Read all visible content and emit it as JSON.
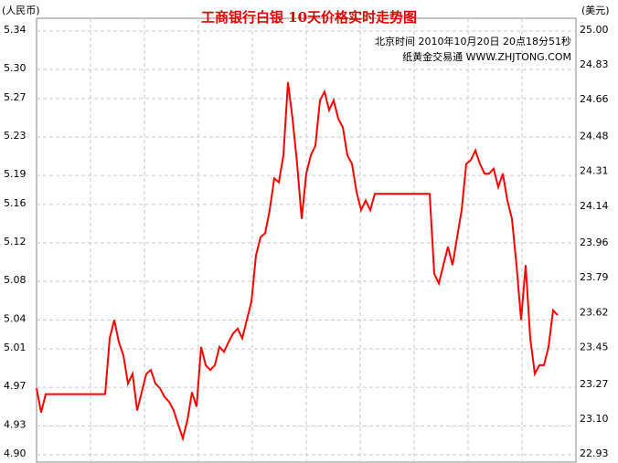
{
  "chart_data": {
    "type": "line",
    "title": "工商银行白银  10天价格实时走势图",
    "subtitle": "北京时间  2010年10月20日 20点18分51秒",
    "source": "纸黄金交易通 WWW.ZHJTONG.COM",
    "ylabel": "(人民币)",
    "y2label": "(美元)",
    "color": "#ff0000",
    "grid": true,
    "ylim": [
      4.9,
      5.34
    ],
    "yticks": [
      5.34,
      {
        "value": 5.3,
        "label": "5.30"
      },
      5.27,
      5.23,
      5.19,
      5.16,
      5.12,
      5.08,
      5.04,
      5.01,
      4.97,
      4.93,
      {
        "value": 4.9,
        "label": "4.90"
      }
    ],
    "y2lim": [
      22.93,
      25.0
    ],
    "y2ticks": [
      {
        "value": 25.0,
        "label": "25.00"
      },
      24.83,
      24.66,
      24.48,
      24.31,
      24.14,
      23.96,
      23.79,
      23.62,
      23.45,
      23.27,
      {
        "value": 23.1,
        "label": "23.10"
      },
      22.93
    ],
    "values": [
      4.969,
      4.944,
      4.963,
      4.963,
      4.963,
      4.963,
      4.963,
      4.963,
      4.963,
      4.963,
      4.963,
      4.963,
      4.963,
      4.963,
      4.963,
      4.963,
      5.021,
      5.04,
      5.017,
      5.003,
      4.974,
      4.984,
      4.946,
      4.965,
      4.984,
      4.988,
      4.974,
      4.969,
      4.96,
      4.955,
      4.946,
      4.931,
      4.917,
      4.936,
      4.965,
      4.95,
      5.012,
      4.993,
      4.988,
      4.993,
      5.012,
      5.007,
      5.017,
      5.026,
      5.031,
      5.021,
      5.04,
      5.059,
      5.107,
      5.126,
      5.13,
      5.154,
      5.187,
      5.183,
      5.211,
      5.287,
      5.249,
      5.202,
      5.145,
      5.192,
      5.211,
      5.221,
      5.268,
      5.277,
      5.258,
      5.268,
      5.249,
      5.24,
      5.211,
      5.202,
      5.173,
      5.154,
      5.164,
      5.154,
      5.171,
      5.171,
      5.171,
      5.171,
      5.171,
      5.171,
      5.171,
      5.171,
      5.171,
      5.171,
      5.171,
      5.171,
      5.171,
      5.088,
      5.078,
      5.097,
      5.116,
      5.097,
      5.126,
      5.154,
      5.202,
      5.206,
      5.216,
      5.202,
      5.192,
      5.192,
      5.197,
      5.178,
      5.192,
      5.164,
      5.145,
      5.097,
      5.04,
      5.097,
      5.021,
      4.984,
      4.993,
      4.993,
      5.012,
      5.05,
      5.045
    ]
  }
}
